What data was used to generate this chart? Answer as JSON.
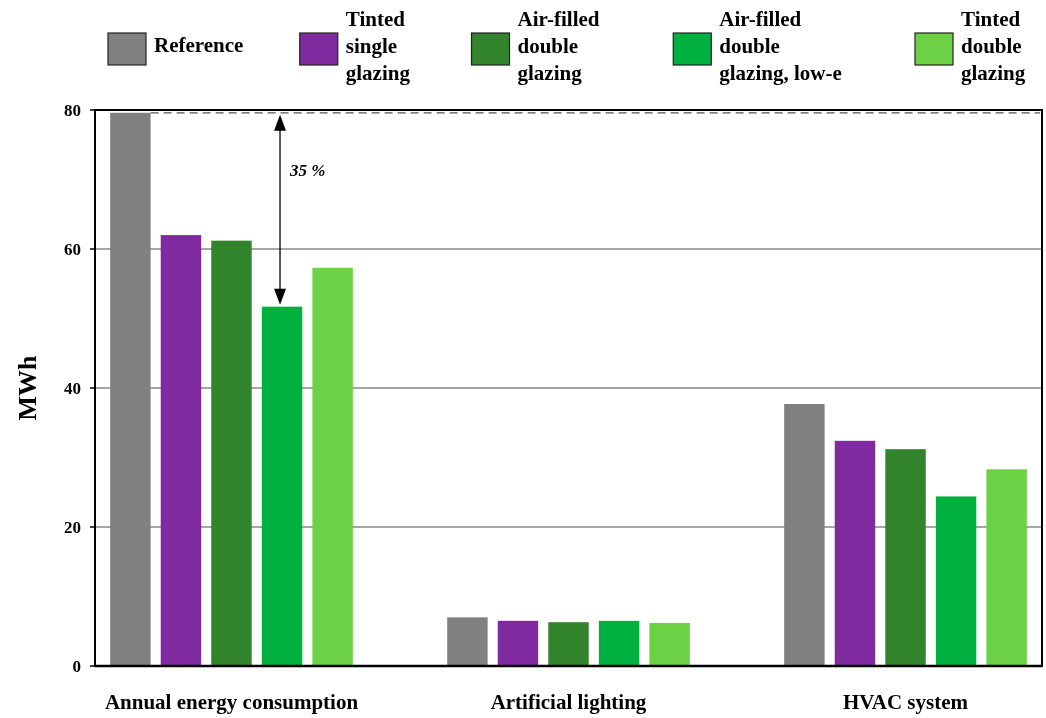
{
  "chart_data": {
    "type": "bar",
    "ylabel": "MWh",
    "categories": [
      "Annual energy consumption",
      "Artificial lighting",
      "HVAC system"
    ],
    "series": [
      {
        "name": "Reference",
        "color": "#808080",
        "values": [
          79.6,
          7.0,
          37.7
        ]
      },
      {
        "name": "Tinted single glazing",
        "color": "#7f2a9e",
        "values": [
          62.0,
          6.5,
          32.4
        ]
      },
      {
        "name": "Air-filled double glazing",
        "color": "#31842b",
        "values": [
          61.2,
          6.3,
          31.2
        ]
      },
      {
        "name": "Air-filled double glazing, low-e",
        "color": "#00b140",
        "values": [
          51.7,
          6.5,
          24.4
        ]
      },
      {
        "name": "Tinted double glazing",
        "color": "#6cd145",
        "values": [
          57.3,
          6.2,
          28.3
        ]
      }
    ],
    "ylim": [
      0,
      80
    ],
    "yticks": [
      0,
      20,
      40,
      60,
      80
    ],
    "grid": "y",
    "legend": "top",
    "ref_lines": [
      {
        "axis": "y",
        "value": 79.6,
        "color": "#555555",
        "line_style": "dashed"
      }
    ],
    "annotations": [
      "35 %"
    ]
  }
}
